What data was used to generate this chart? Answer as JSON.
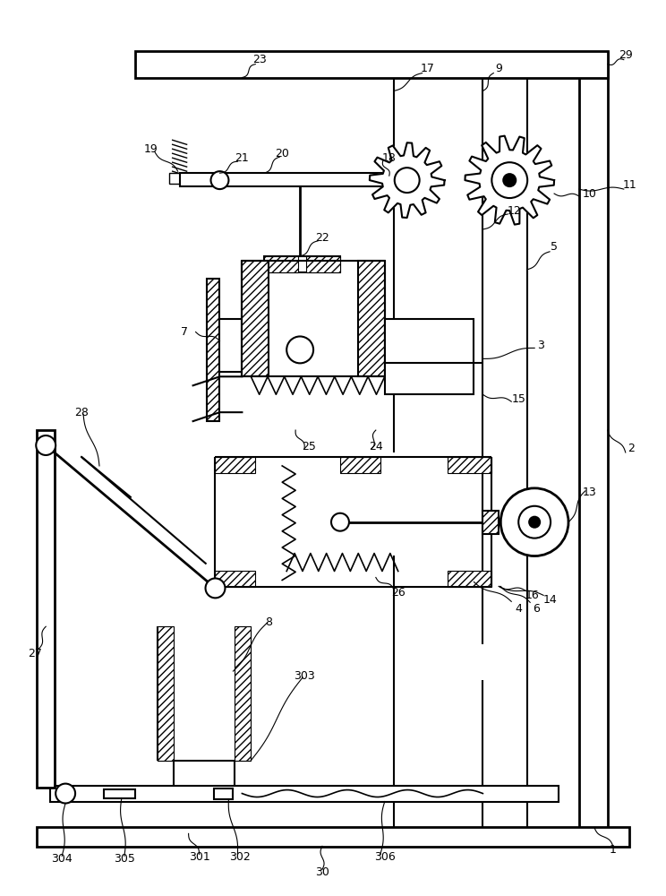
{
  "bg_color": "#ffffff",
  "lw_main": 1.5,
  "lw_thin": 1.0,
  "lw_thick": 2.0
}
